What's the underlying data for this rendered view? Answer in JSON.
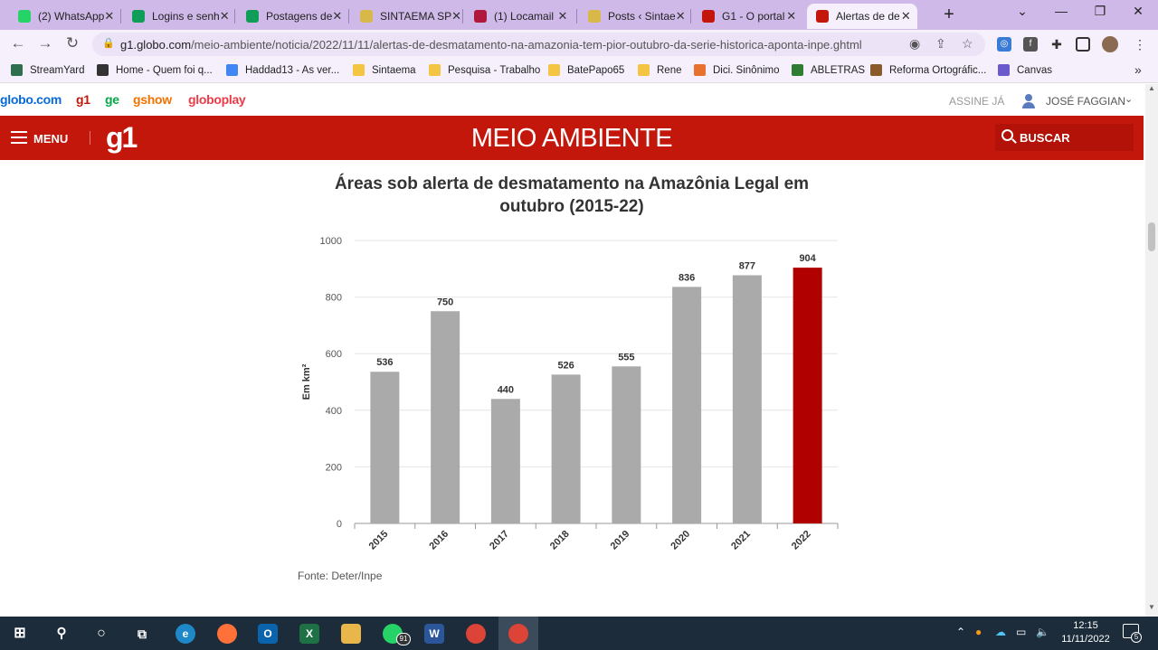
{
  "browser": {
    "tabs": [
      {
        "title": "(2) WhatsApp",
        "icon": "whatsapp-icon",
        "color": "#25d366"
      },
      {
        "title": "Logins e senh",
        "icon": "google-sheets-icon",
        "color": "#0f9d58"
      },
      {
        "title": "Postagens de",
        "icon": "google-sheets-icon",
        "color": "#0f9d58"
      },
      {
        "title": "SINTAEMA SP",
        "icon": "site-icon",
        "color": "#d9b84a"
      },
      {
        "title": "(1) Locamail",
        "icon": "locamail-icon",
        "color": "#b0173d"
      },
      {
        "title": "Posts ‹ Sintae",
        "icon": "site-icon",
        "color": "#d9b84a"
      },
      {
        "title": "G1 - O portal",
        "icon": "g1-icon",
        "color": "#c4170c"
      },
      {
        "title": "Alertas de de",
        "icon": "g1-icon",
        "color": "#c4170c"
      }
    ],
    "url_host": "g1.globo.com",
    "url_path": "/meio-ambiente/noticia/2022/11/11/alertas-de-desmatamento-na-amazonia-tem-pior-outubro-da-serie-historica-aponta-inpe.ghtml",
    "bookmarks": [
      {
        "label": "StreamYard",
        "icon": "streamyard-icon",
        "color": "#2f6f4f"
      },
      {
        "label": "Home - Quem foi q...",
        "icon": "globe-icon",
        "color": "#333333"
      },
      {
        "label": "Haddad13 - As ver...",
        "icon": "google-docs-icon",
        "color": "#4285f4"
      },
      {
        "label": "Sintaema",
        "icon": "folder-icon",
        "color": "#f4c542"
      },
      {
        "label": "Pesquisa - Trabalho",
        "icon": "folder-icon",
        "color": "#f4c542"
      },
      {
        "label": "BatePapo65",
        "icon": "folder-icon",
        "color": "#f4c542"
      },
      {
        "label": "Rene",
        "icon": "folder-icon",
        "color": "#f4c542"
      },
      {
        "label": "Dici. Sinônimo",
        "icon": "dicio-icon",
        "color": "#e8712e"
      },
      {
        "label": "ABLETRAS",
        "icon": "abl-icon",
        "color": "#2e7d32"
      },
      {
        "label": "Reforma Ortográfic...",
        "icon": "reforma-icon",
        "color": "#8b5a2b"
      },
      {
        "label": "Canvas",
        "icon": "canvas-icon",
        "color": "#6a5acd"
      }
    ]
  },
  "site": {
    "brands": [
      {
        "label": "globo.com",
        "color": "#0669de"
      },
      {
        "label": "g1",
        "color": "#c4170c"
      },
      {
        "label": "ge",
        "color": "#06aa48"
      },
      {
        "label": "gshow",
        "color": "#f27200"
      },
      {
        "label": "globoplay",
        "color": "#ed3a47"
      }
    ],
    "assine": "ASSINE JÁ",
    "username": "JOSÉ FAGGIAN",
    "menu_label": "MENU",
    "logo": "g1",
    "section_title": "MEIO AMBIENTE",
    "search_label": "BUSCAR",
    "source": "Fonte: Deter/Inpe"
  },
  "chart_data": {
    "type": "bar",
    "title": "Áreas sob alerta de desmatamento na Amazônia Legal em outubro (2015-22)",
    "ylabel": "Em km²",
    "xlabel": "",
    "categories": [
      "2015",
      "2016",
      "2017",
      "2018",
      "2019",
      "2020",
      "2021",
      "2022"
    ],
    "values": [
      536,
      750,
      440,
      526,
      555,
      836,
      877,
      904
    ],
    "ylim": [
      0,
      1000
    ],
    "yticks": [
      0,
      200,
      400,
      600,
      800,
      1000
    ],
    "bar_color": "#aaaaaa",
    "highlight_color": "#b00000",
    "highlight_index": 7,
    "grid": true
  },
  "taskbar": {
    "time": "12:15",
    "date": "11/11/2022",
    "whatsapp_badge": "91",
    "notifications": "5"
  }
}
